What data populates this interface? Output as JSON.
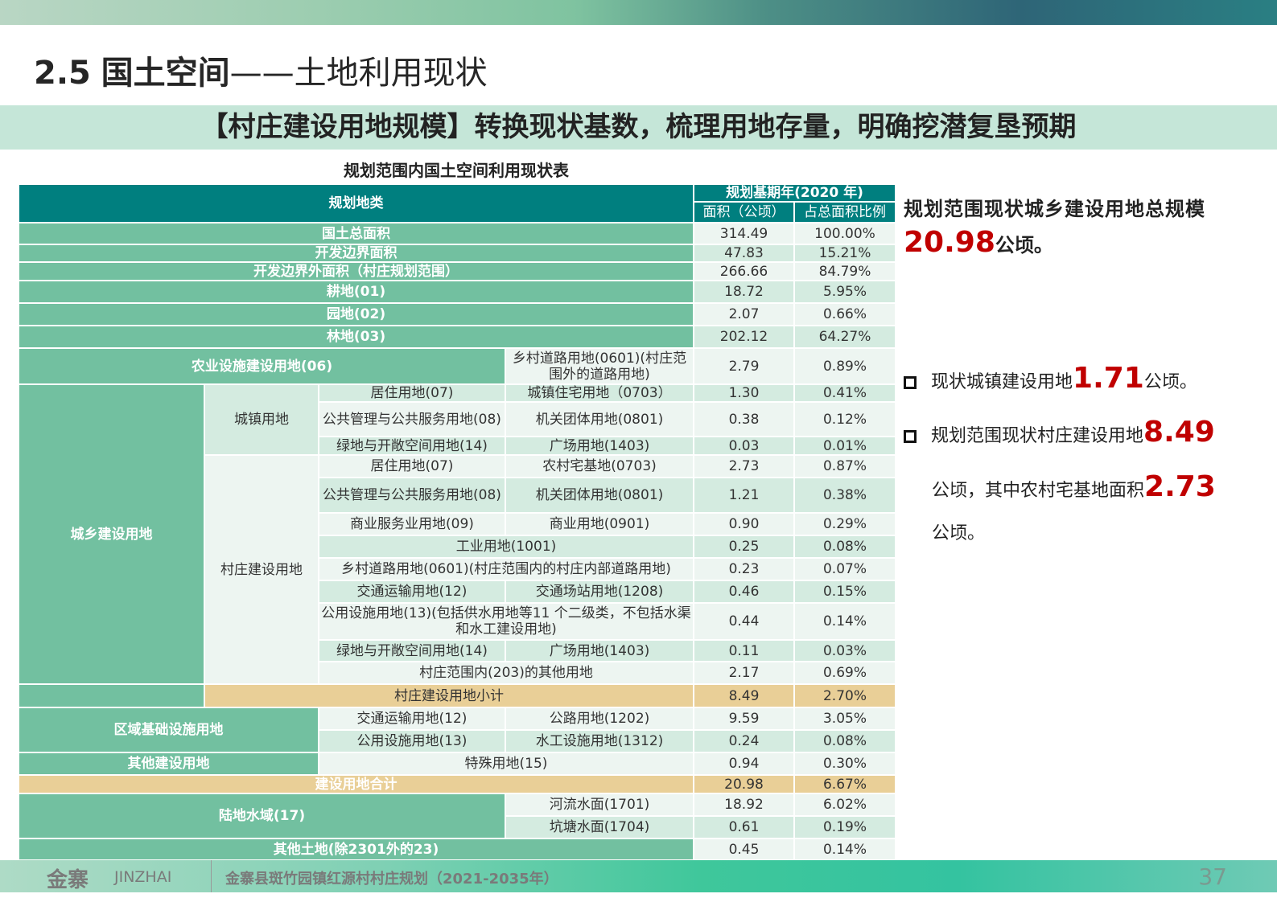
{
  "header": {
    "number": "2.5",
    "title_bold": "国土空间",
    "title_rest": "——土地利用现状"
  },
  "banner": "【村庄建设用地规模】转换现状基数，梳理用地存量，明确挖潜复垦预期",
  "table": {
    "title": "规划范围内国土空间利用现状表",
    "col_category": "规划地类",
    "col_base_year": "规划基期年(2020 年)",
    "col_area": "面积（公顷）",
    "col_ratio": "占总面积比例",
    "rows": [
      {
        "name": "国土总面积",
        "area": "314.49",
        "ratio": "100.00%"
      },
      {
        "name": "开发边界面积",
        "area": "47.83",
        "ratio": "15.21%"
      },
      {
        "name": "开发边界外面积（村庄规划范围）",
        "area": "266.66",
        "ratio": "84.79%"
      },
      {
        "name": "耕地(01)",
        "area": "18.72",
        "ratio": "5.95%"
      },
      {
        "name": "园地(02)",
        "area": "2.07",
        "ratio": "0.66%"
      },
      {
        "name": "林地(03)",
        "area": "202.12",
        "ratio": "64.27%"
      },
      {
        "name": "农业设施建设用地(06)",
        "sub": "乡村道路用地(0601)(村庄范围外的道路用地)",
        "area": "2.79",
        "ratio": "0.89%"
      },
      {
        "l1": "城乡建设用地",
        "l2": "城镇用地",
        "name": "居住用地(07)",
        "sub": "城镇住宅用地（0703）",
        "area": "1.30",
        "ratio": "0.41%"
      },
      {
        "name": "公共管理与公共服务用地(08)",
        "sub": "机关团体用地(0801)",
        "area": "0.38",
        "ratio": "0.12%"
      },
      {
        "name": "绿地与开敞空间用地(14)",
        "sub": "广场用地(1403)",
        "area": "0.03",
        "ratio": "0.01%"
      },
      {
        "l2": "村庄建设用地",
        "name": "居住用地(07)",
        "sub": "农村宅基地(0703)",
        "area": "2.73",
        "ratio": "0.87%"
      },
      {
        "name": "公共管理与公共服务用地(08)",
        "sub": "机关团体用地(0801)",
        "area": "1.21",
        "ratio": "0.38%"
      },
      {
        "name": "商业服务业用地(09)",
        "sub": "商业用地(0901)",
        "area": "0.90",
        "ratio": "0.29%"
      },
      {
        "name": "工业用地(1001)",
        "area": "0.25",
        "ratio": "0.08%"
      },
      {
        "name": "乡村道路用地(0601)(村庄范围内的村庄内部道路用地)",
        "area": "0.23",
        "ratio": "0.07%"
      },
      {
        "name": "交通运输用地(12)",
        "sub": "交通场站用地(1208)",
        "area": "0.46",
        "ratio": "0.15%"
      },
      {
        "name": "公用设施用地(13)(包括供水用地等11 个二级类，不包括水渠和水工建设用地)",
        "area": "0.44",
        "ratio": "0.14%"
      },
      {
        "name": "绿地与开敞空间用地(14)",
        "sub": "广场用地(1403)",
        "area": "0.11",
        "ratio": "0.03%"
      },
      {
        "name": "村庄范围内(203)的其他用地",
        "area": "2.17",
        "ratio": "0.69%"
      },
      {
        "name": "村庄建设用地小计",
        "area": "8.49",
        "ratio": "2.70%"
      },
      {
        "l1": "区域基础设施用地",
        "name": "交通运输用地(12)",
        "sub": "公路用地(1202)",
        "area": "9.59",
        "ratio": "3.05%"
      },
      {
        "name": "公用设施用地(13)",
        "sub": "水工设施用地(1312)",
        "area": "0.24",
        "ratio": "0.08%"
      },
      {
        "l1": "其他建设用地",
        "name": "特殊用地(15)",
        "area": "0.94",
        "ratio": "0.30%"
      },
      {
        "name": "建设用地合计",
        "area": "20.98",
        "ratio": "6.67%"
      },
      {
        "l1": "陆地水域(17)",
        "sub": "河流水面(1701)",
        "area": "18.92",
        "ratio": "6.02%"
      },
      {
        "sub": "坑塘水面(1704)",
        "area": "0.61",
        "ratio": "0.19%"
      },
      {
        "name": "其他土地(除2301外的23)",
        "area": "0.45",
        "ratio": "0.14%"
      }
    ]
  },
  "summary": {
    "heading": "规划范围现状城乡建设用地总规模",
    "total": "20.98",
    "total_unit": "公顷。",
    "b1_text": "现状城镇建设用地",
    "b1_value": "1.71",
    "b1_unit": "公顷。",
    "b2_text": "规划范围现状村庄建设用地",
    "b2_value": "8.49",
    "b2_text2": "公顷，其中农村宅基地面积",
    "b2_value2": "2.73",
    "b2_unit": "公顷。"
  },
  "footer": {
    "brand_cn": "金寨",
    "brand_en": "JINZHAI",
    "project": "金寨县斑竹园镇红源村村庄规划（2021-2035年）",
    "page": "37"
  },
  "colors": {
    "teal": "#007f7f",
    "green": "#72c0a0",
    "tan": "#e9cf97",
    "red": "#c00000"
  }
}
